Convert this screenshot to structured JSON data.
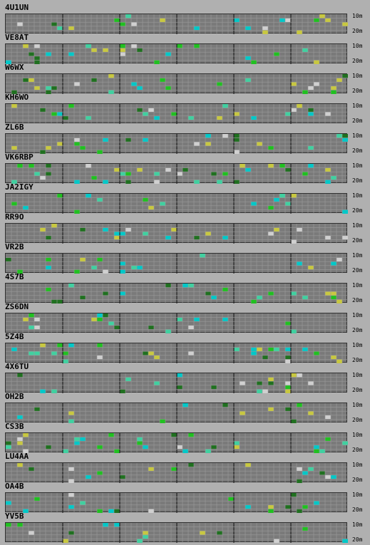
{
  "band_labels": {
    "top": "10m",
    "bottom": "20m"
  },
  "colors": {
    "background": "#b0b0b0",
    "grid": "#7a7a7a",
    "cyan": "#00c8c8",
    "green": "#20c020",
    "yellow": "#c8c840",
    "white": "#d0d0d0",
    "dark_green": "#207020"
  },
  "stations": [
    {
      "callsign": "4U1UN"
    },
    {
      "callsign": "VE8AT"
    },
    {
      "callsign": "W6WX"
    },
    {
      "callsign": "KH6WO"
    },
    {
      "callsign": "ZL6B"
    },
    {
      "callsign": "VK6RBP"
    },
    {
      "callsign": "JA2IGY"
    },
    {
      "callsign": "RR9O"
    },
    {
      "callsign": "VR2B"
    },
    {
      "callsign": "4S7B"
    },
    {
      "callsign": "ZS6DN"
    },
    {
      "callsign": "5Z4B"
    },
    {
      "callsign": "4X6TU"
    },
    {
      "callsign": "OH2B"
    },
    {
      "callsign": "CS3B"
    },
    {
      "callsign": "LU4AA"
    },
    {
      "callsign": "OA4B"
    },
    {
      "callsign": "YV5B"
    }
  ]
}
